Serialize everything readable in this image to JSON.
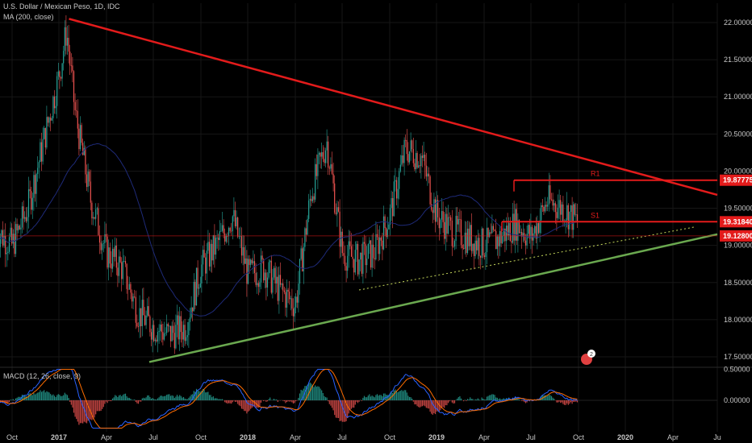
{
  "header": {
    "title": "U.S. Dollar / Mexican Peso, 1D, IDC",
    "ma_label": "MA (200, close)",
    "macd_label": "MACD (12, 26, close, 9)"
  },
  "colors": {
    "background": "#000000",
    "up": "#26a69a",
    "down": "#ef5350",
    "resistance": "#e31b1b",
    "support": "#6aa84f",
    "ma": "#1e2a78",
    "macd": "#2962ff",
    "signal": "#ff6d00",
    "dotted": "#c4d65a"
  },
  "axis": {
    "price_ticks": [
      "22.00000",
      "21.50000",
      "21.00000",
      "20.50000",
      "20.00000",
      "19.50000",
      "19.00000",
      "18.50000",
      "18.00000",
      "17.50000"
    ],
    "macd_ticks": [
      "0.50000",
      "0.00000"
    ],
    "time_ticks": [
      {
        "label": "Oct",
        "bold": false
      },
      {
        "label": "2017",
        "bold": true
      },
      {
        "label": "Apr",
        "bold": false
      },
      {
        "label": "Jul",
        "bold": false
      },
      {
        "label": "Oct",
        "bold": false
      },
      {
        "label": "2018",
        "bold": true
      },
      {
        "label": "Apr",
        "bold": false
      },
      {
        "label": "Jul",
        "bold": false
      },
      {
        "label": "Oct",
        "bold": false
      },
      {
        "label": "2019",
        "bold": true
      },
      {
        "label": "Apr",
        "bold": false
      },
      {
        "label": "Jul",
        "bold": false
      },
      {
        "label": "Oct",
        "bold": false
      },
      {
        "label": "2020",
        "bold": true
      },
      {
        "label": "Apr",
        "bold": false
      },
      {
        "label": "Ju",
        "bold": false
      }
    ]
  },
  "price_tags": [
    {
      "value": "19.87775",
      "level": 19.87775
    },
    {
      "value": "19.31840",
      "level": 19.3184
    },
    {
      "value": "19.12800",
      "level": 19.128
    }
  ],
  "level_labels": {
    "r1": "R1",
    "s1": "S1"
  },
  "event_badge": "2",
  "chart_data": {
    "type": "candlestick",
    "symbol": "USD/MXN",
    "price_range": [
      17.4,
      22.2
    ],
    "macd_range": [
      -0.45,
      0.55
    ],
    "x_labels": [
      "Oct",
      "2017",
      "Apr",
      "Jul",
      "Oct",
      "2018",
      "Apr",
      "Jul",
      "Oct",
      "2019",
      "Apr",
      "Jul",
      "Oct",
      "2020",
      "Apr",
      "Ju"
    ],
    "close_path": [
      [
        "2016-09",
        19.2
      ],
      [
        "2016-10",
        19.0
      ],
      [
        "2016-11",
        19.5
      ],
      [
        "2016-12",
        20.4
      ],
      [
        "2017-01",
        21.3
      ],
      [
        "2017-01b",
        21.9
      ],
      [
        "2017-02",
        20.8
      ],
      [
        "2017-03",
        19.6
      ],
      [
        "2017-04",
        18.9
      ],
      [
        "2017-05",
        18.7
      ],
      [
        "2017-06",
        18.1
      ],
      [
        "2017-07",
        17.9
      ],
      [
        "2017-08",
        17.8
      ],
      [
        "2017-09",
        17.9
      ],
      [
        "2017-10",
        18.7
      ],
      [
        "2017-11",
        19.0
      ],
      [
        "2017-12",
        19.4
      ],
      [
        "2018-01",
        18.6
      ],
      [
        "2018-02",
        18.7
      ],
      [
        "2018-03",
        18.4
      ],
      [
        "2018-04",
        18.2
      ],
      [
        "2018-05",
        19.7
      ],
      [
        "2018-06",
        20.4
      ],
      [
        "2018-07",
        18.9
      ],
      [
        "2018-08",
        18.8
      ],
      [
        "2018-09",
        18.9
      ],
      [
        "2018-10",
        19.4
      ],
      [
        "2018-11",
        20.3
      ],
      [
        "2018-12",
        20.2
      ],
      [
        "2019-01",
        19.4
      ],
      [
        "2019-02",
        19.2
      ],
      [
        "2019-03",
        19.1
      ],
      [
        "2019-04",
        19.0
      ],
      [
        "2019-05",
        19.1
      ],
      [
        "2019-06",
        19.3
      ],
      [
        "2019-07",
        19.1
      ],
      [
        "2019-08",
        19.6
      ],
      [
        "2019-09",
        19.5
      ],
      [
        "2019-10",
        19.3
      ]
    ],
    "trendlines": [
      {
        "name": "resistance",
        "from": [
          "2017-01",
          22.05
        ],
        "to": [
          "2020-07",
          19.68
        ]
      },
      {
        "name": "support",
        "from": [
          "2017-06",
          17.43
        ],
        "to": [
          "2020-07",
          19.15
        ]
      },
      {
        "name": "dotted-support",
        "from": [
          "2018-07",
          18.4
        ],
        "to": [
          "2020-06",
          19.25
        ]
      }
    ],
    "levels": [
      {
        "name": "R1",
        "value": 19.87775
      },
      {
        "name": "S1",
        "value": 19.3184
      },
      {
        "name": "last",
        "value": 19.128
      }
    ]
  }
}
